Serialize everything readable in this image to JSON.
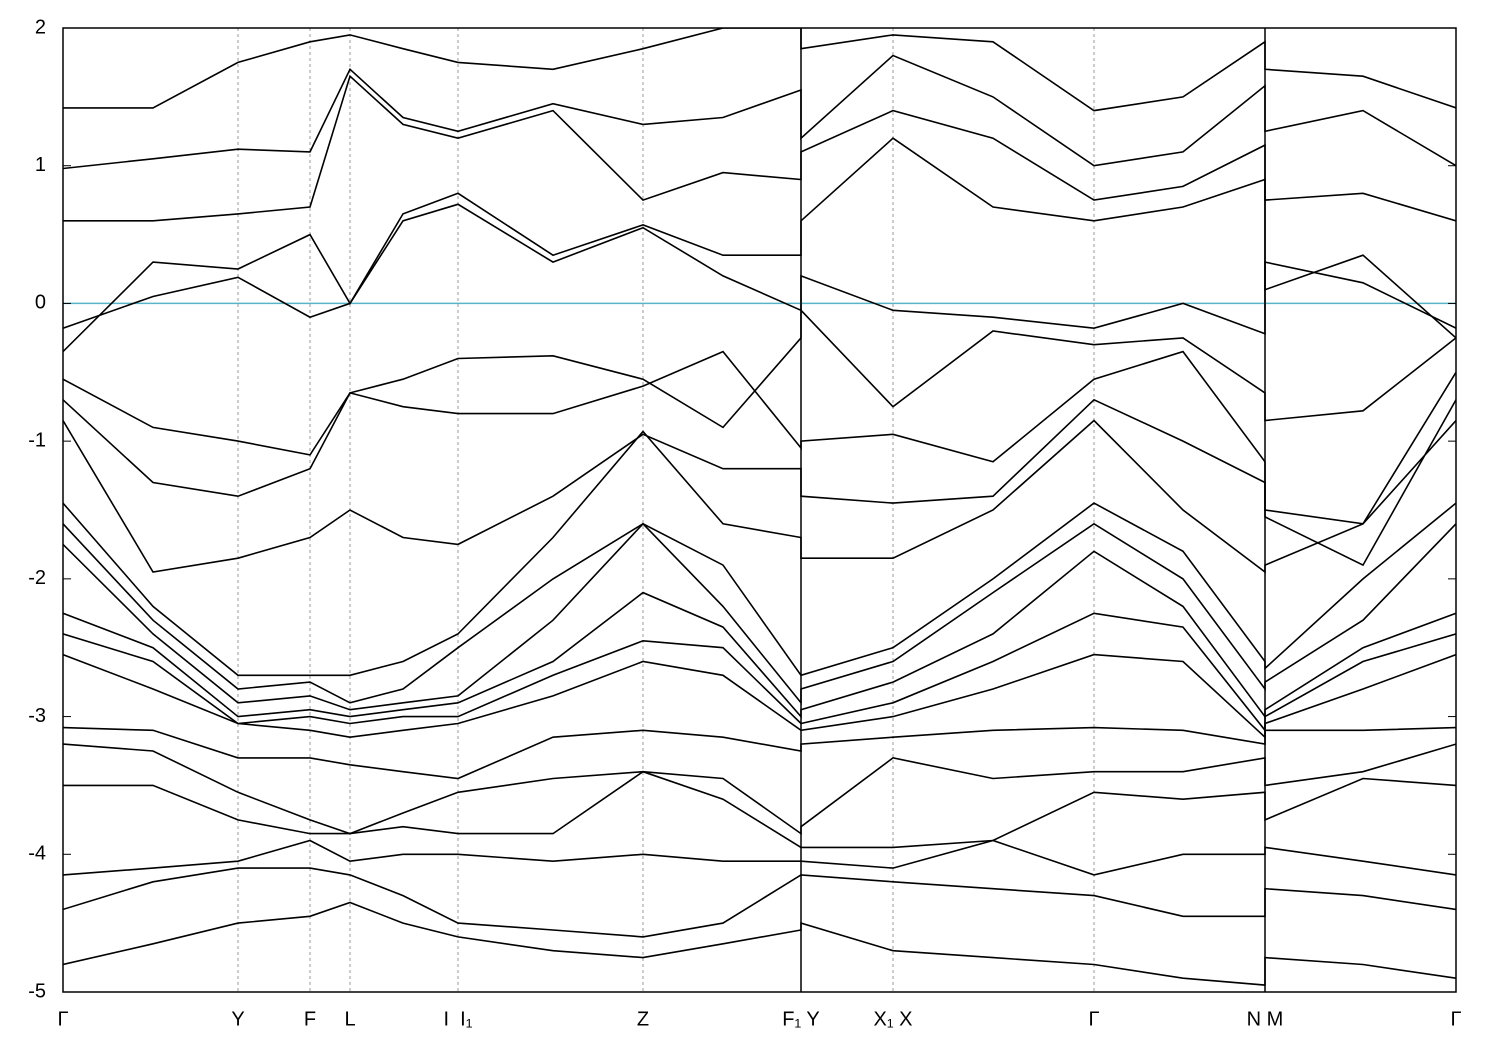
{
  "chart_data": {
    "type": "line",
    "x": [
      0,
      90,
      175,
      247,
      287,
      340,
      395,
      490,
      580,
      660,
      738,
      738,
      830,
      930,
      1031,
      1120,
      1202,
      1202,
      1300,
      1393
    ],
    "xlim": [
      0,
      1393
    ],
    "xticks": [
      {
        "value": 0,
        "label": "Γ"
      },
      {
        "value": 175,
        "label": "Y"
      },
      {
        "value": 247,
        "label": "F"
      },
      {
        "value": 287,
        "label": "L"
      },
      {
        "value": 395,
        "label": "I  I₁"
      },
      {
        "value": 580,
        "label": "Z"
      },
      {
        "value": 738,
        "label": "F₁ Y"
      },
      {
        "value": 830,
        "label": "X₁ X"
      },
      {
        "value": 1031,
        "label": "Γ"
      },
      {
        "value": 1202,
        "label": "N M"
      },
      {
        "value": 1393,
        "label": "Γ"
      }
    ],
    "ylim": [
      -5,
      2
    ],
    "yticks": [
      -5,
      -4,
      -3,
      -2,
      -1,
      0,
      1,
      2
    ],
    "fermi_level": 0,
    "fermi_color": "#5ab4c8",
    "line_color": "#000000",
    "grid": true,
    "series": [
      {
        "values": [
          -0.18,
          0.05,
          0.19,
          -0.1,
          0.0,
          0.6,
          0.72,
          0.3,
          0.55,
          0.2,
          -0.05,
          0.2,
          -0.05,
          -0.1,
          -0.18,
          0.0,
          -0.22,
          0.3,
          0.15,
          -0.18
        ]
      },
      {
        "values": [
          -0.35,
          0.3,
          0.25,
          0.5,
          0.0,
          0.65,
          0.8,
          0.35,
          0.57,
          0.35,
          0.35,
          0.6,
          1.2,
          0.7,
          0.6,
          0.7,
          0.9,
          0.1,
          0.35,
          -0.25
        ]
      },
      {
        "values": [
          0.6,
          0.6,
          0.65,
          0.7,
          1.65,
          1.3,
          1.2,
          1.4,
          0.75,
          0.95,
          0.9,
          1.1,
          1.4,
          1.2,
          0.75,
          0.85,
          1.15,
          0.75,
          0.8,
          0.6
        ]
      },
      {
        "values": [
          0.98,
          1.05,
          1.12,
          1.1,
          1.7,
          1.35,
          1.25,
          1.45,
          1.3,
          1.35,
          1.55,
          1.2,
          1.8,
          1.5,
          1.0,
          1.1,
          1.58,
          1.25,
          1.4,
          1.0
        ]
      },
      {
        "values": [
          1.42,
          1.42,
          1.75,
          1.9,
          1.95,
          1.85,
          1.75,
          1.7,
          1.85,
          2.0,
          2.0,
          1.85,
          1.95,
          1.9,
          1.4,
          1.5,
          1.9,
          1.7,
          1.65,
          1.42
        ]
      },
      {
        "values": [
          -0.55,
          -0.9,
          -1.0,
          -1.1,
          -0.65,
          -0.55,
          -0.4,
          -0.38,
          -0.55,
          -0.9,
          -0.25,
          -0.05,
          -0.75,
          -0.2,
          -0.3,
          -0.25,
          -0.65,
          -0.85,
          -0.78,
          -0.25
        ]
      },
      {
        "values": [
          -0.7,
          -1.3,
          -1.4,
          -1.2,
          -0.65,
          -0.75,
          -0.8,
          -0.8,
          -0.6,
          -0.35,
          -1.05,
          -1.0,
          -0.95,
          -1.15,
          -0.55,
          -0.35,
          -1.15,
          -1.5,
          -1.6,
          -0.5
        ]
      },
      {
        "values": [
          -0.85,
          -1.95,
          -1.85,
          -1.7,
          -1.5,
          -1.7,
          -1.75,
          -1.4,
          -0.95,
          -1.2,
          -1.2,
          -1.4,
          -1.45,
          -1.4,
          -0.7,
          -1.0,
          -1.3,
          -1.55,
          -1.9,
          -0.7
        ]
      },
      {
        "values": [
          -1.45,
          -2.2,
          -2.7,
          -2.7,
          -2.7,
          -2.6,
          -2.4,
          -1.7,
          -0.93,
          -1.6,
          -1.7,
          -1.85,
          -1.85,
          -1.5,
          -0.85,
          -1.5,
          -1.95,
          -1.9,
          -1.6,
          -0.85
        ]
      },
      {
        "values": [
          -1.6,
          -2.3,
          -2.8,
          -2.75,
          -2.9,
          -2.8,
          -2.5,
          -2.0,
          -1.6,
          -1.9,
          -2.7,
          -2.7,
          -2.5,
          -2.0,
          -1.45,
          -1.8,
          -2.6,
          -2.65,
          -2.0,
          -1.45
        ]
      },
      {
        "values": [
          -1.75,
          -2.4,
          -2.9,
          -2.85,
          -2.95,
          -2.9,
          -2.85,
          -2.3,
          -1.6,
          -2.2,
          -2.9,
          -2.8,
          -2.6,
          -2.1,
          -1.6,
          -2.0,
          -2.8,
          -2.75,
          -2.3,
          -1.6
        ]
      },
      {
        "values": [
          -2.25,
          -2.5,
          -3.0,
          -2.95,
          -3.0,
          -2.95,
          -2.9,
          -2.6,
          -2.1,
          -2.35,
          -3.0,
          -2.95,
          -2.75,
          -2.4,
          -1.8,
          -2.2,
          -3.0,
          -2.95,
          -2.5,
          -2.25
        ]
      },
      {
        "values": [
          -2.4,
          -2.6,
          -3.05,
          -3.0,
          -3.05,
          -3.0,
          -3.0,
          -2.7,
          -2.45,
          -2.5,
          -3.05,
          -3.05,
          -2.9,
          -2.6,
          -2.25,
          -2.35,
          -3.1,
          -3.0,
          -2.6,
          -2.4
        ]
      },
      {
        "values": [
          -2.55,
          -2.8,
          -3.05,
          -3.1,
          -3.15,
          -3.1,
          -3.05,
          -2.85,
          -2.6,
          -2.7,
          -3.1,
          -3.1,
          -3.0,
          -2.8,
          -2.55,
          -2.6,
          -3.15,
          -3.05,
          -2.8,
          -2.55
        ]
      },
      {
        "values": [
          -3.08,
          -3.1,
          -3.3,
          -3.3,
          -3.35,
          -3.4,
          -3.45,
          -3.15,
          -3.1,
          -3.15,
          -3.25,
          -3.2,
          -3.15,
          -3.1,
          -3.08,
          -3.1,
          -3.2,
          -3.1,
          -3.1,
          -3.08
        ]
      },
      {
        "values": [
          -3.2,
          -3.25,
          -3.55,
          -3.75,
          -3.85,
          -3.7,
          -3.55,
          -3.45,
          -3.4,
          -3.45,
          -3.85,
          -3.8,
          -3.3,
          -3.45,
          -3.4,
          -3.4,
          -3.3,
          -3.5,
          -3.4,
          -3.2
        ]
      },
      {
        "values": [
          -3.5,
          -3.5,
          -3.75,
          -3.85,
          -3.85,
          -3.8,
          -3.85,
          -3.85,
          -3.4,
          -3.6,
          -3.95,
          -3.95,
          -3.95,
          -3.9,
          -3.55,
          -3.6,
          -3.55,
          -3.75,
          -3.45,
          -3.5
        ]
      },
      {
        "values": [
          -4.15,
          -4.1,
          -4.05,
          -3.9,
          -4.05,
          -4.0,
          -4.0,
          -4.05,
          -4.0,
          -4.05,
          -4.05,
          -4.05,
          -4.1,
          -3.9,
          -4.15,
          -4.0,
          -4.0,
          -3.95,
          -4.05,
          -4.15
        ]
      },
      {
        "values": [
          -4.4,
          -4.2,
          -4.1,
          -4.1,
          -4.15,
          -4.3,
          -4.5,
          -4.55,
          -4.6,
          -4.5,
          -4.15,
          -4.15,
          -4.2,
          -4.25,
          -4.3,
          -4.45,
          -4.45,
          -4.25,
          -4.3,
          -4.4
        ]
      },
      {
        "values": [
          -4.8,
          -4.65,
          -4.5,
          -4.45,
          -4.35,
          -4.5,
          -4.6,
          -4.7,
          -4.75,
          -4.65,
          -4.55,
          -4.5,
          -4.7,
          -4.75,
          -4.8,
          -4.9,
          -4.95,
          -4.75,
          -4.8,
          -4.9
        ]
      }
    ]
  }
}
